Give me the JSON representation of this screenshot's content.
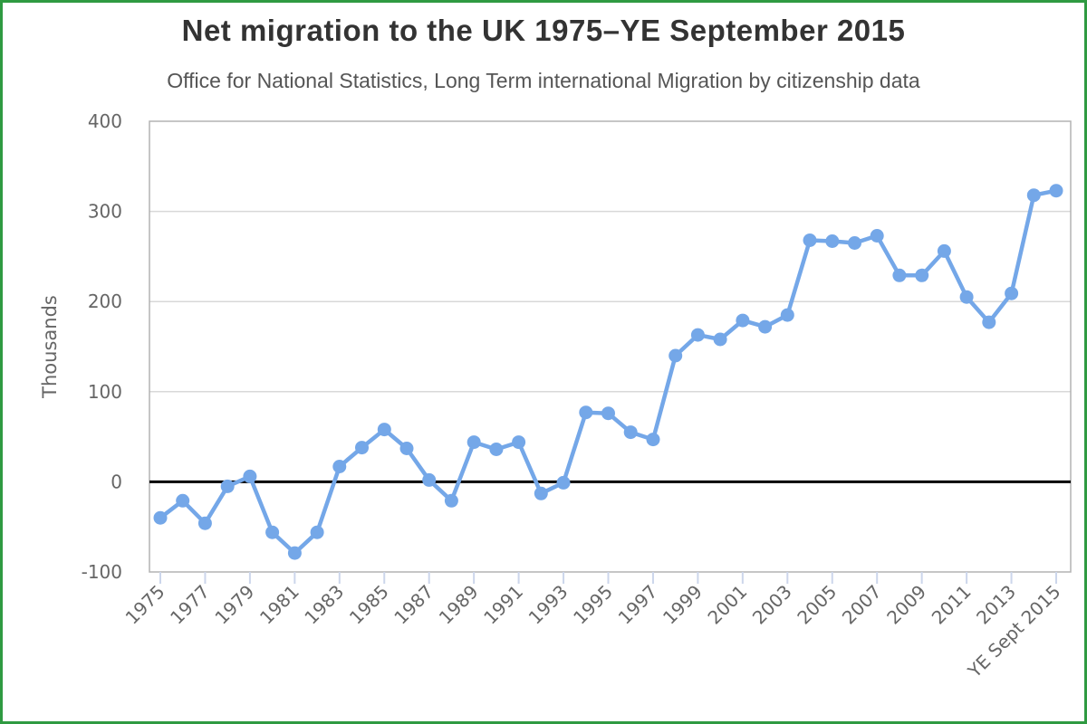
{
  "window": {
    "background": "#ffffff",
    "frame_border_color": "#2f9a41"
  },
  "chart_data": {
    "type": "line",
    "title": "Net migration to the UK 1975–YE September 2015",
    "subtitle": "Office for National Statistics, Long Term international Migration by citizenship data",
    "xlabel": "",
    "ylabel": "Thousands",
    "ylim": [
      -100,
      400
    ],
    "yticks": [
      400,
      300,
      200,
      100,
      0,
      -100
    ],
    "grid": "horizontal-only",
    "legend": "none",
    "zero_line": true,
    "categories": [
      "1975",
      "1976",
      "1977",
      "1978",
      "1979",
      "1980",
      "1981",
      "1982",
      "1983",
      "1984",
      "1985",
      "1986",
      "1987",
      "1988",
      "1989",
      "1990",
      "1991",
      "1992",
      "1993",
      "1994",
      "1995",
      "1996",
      "1997",
      "1998",
      "1999",
      "2000",
      "2001",
      "2002",
      "2003",
      "2004",
      "2005",
      "2006",
      "2007",
      "2008",
      "2009",
      "2010",
      "2011",
      "2012",
      "2013",
      "2014",
      "YE Sept 2015"
    ],
    "xtick_labels": [
      "1975",
      "1977",
      "1979",
      "1981",
      "1983",
      "1985",
      "1987",
      "1989",
      "1991",
      "1993",
      "1995",
      "1997",
      "1999",
      "2001",
      "2003",
      "2005",
      "2007",
      "2009",
      "2011",
      "2013",
      "YE Sept 2015"
    ],
    "series": [
      {
        "name": "Net migration (thousands)",
        "color": "#74a7e8",
        "marker": "circle",
        "values": [
          -40,
          -21,
          -46,
          -5,
          6,
          -56,
          -79,
          -56,
          17,
          38,
          58,
          37,
          2,
          -21,
          44,
          36,
          44,
          -13,
          -1,
          77,
          76,
          55,
          47,
          140,
          163,
          158,
          179,
          172,
          185,
          268,
          267,
          265,
          273,
          229,
          229,
          256,
          205,
          177,
          209,
          318,
          323
        ]
      }
    ],
    "colors": {
      "grid": "#d8d8d8",
      "plot_border": "#b3b3b3",
      "zero_line": "#000000",
      "tick": "#ccd6eb",
      "axis_label": "#666666",
      "title": "#333333",
      "subtitle": "#555555"
    }
  }
}
